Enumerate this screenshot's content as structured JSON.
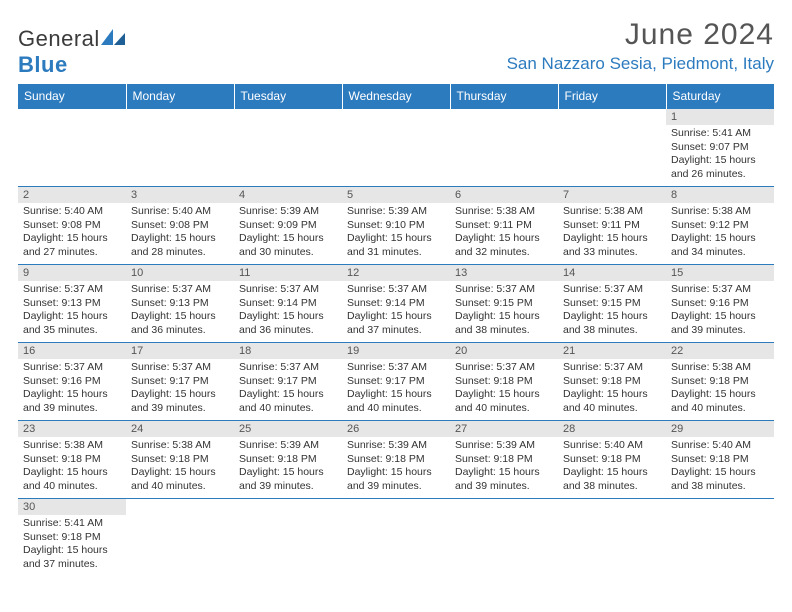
{
  "logo": {
    "name": "General",
    "nameBlue": "Blue"
  },
  "title": "June 2024",
  "location": "San Nazzaro Sesia, Piedmont, Italy",
  "dayHeaders": [
    "Sunday",
    "Monday",
    "Tuesday",
    "Wednesday",
    "Thursday",
    "Friday",
    "Saturday"
  ],
  "colors": {
    "accent": "#2d7bbf",
    "dateBar": "#e6e6e6"
  },
  "weeks": [
    [
      null,
      null,
      null,
      null,
      null,
      null,
      {
        "d": "1",
        "sr": "5:41 AM",
        "ss": "9:07 PM",
        "dl": "15 hours and 26 minutes."
      }
    ],
    [
      {
        "d": "2",
        "sr": "5:40 AM",
        "ss": "9:08 PM",
        "dl": "15 hours and 27 minutes."
      },
      {
        "d": "3",
        "sr": "5:40 AM",
        "ss": "9:08 PM",
        "dl": "15 hours and 28 minutes."
      },
      {
        "d": "4",
        "sr": "5:39 AM",
        "ss": "9:09 PM",
        "dl": "15 hours and 30 minutes."
      },
      {
        "d": "5",
        "sr": "5:39 AM",
        "ss": "9:10 PM",
        "dl": "15 hours and 31 minutes."
      },
      {
        "d": "6",
        "sr": "5:38 AM",
        "ss": "9:11 PM",
        "dl": "15 hours and 32 minutes."
      },
      {
        "d": "7",
        "sr": "5:38 AM",
        "ss": "9:11 PM",
        "dl": "15 hours and 33 minutes."
      },
      {
        "d": "8",
        "sr": "5:38 AM",
        "ss": "9:12 PM",
        "dl": "15 hours and 34 minutes."
      }
    ],
    [
      {
        "d": "9",
        "sr": "5:37 AM",
        "ss": "9:13 PM",
        "dl": "15 hours and 35 minutes."
      },
      {
        "d": "10",
        "sr": "5:37 AM",
        "ss": "9:13 PM",
        "dl": "15 hours and 36 minutes."
      },
      {
        "d": "11",
        "sr": "5:37 AM",
        "ss": "9:14 PM",
        "dl": "15 hours and 36 minutes."
      },
      {
        "d": "12",
        "sr": "5:37 AM",
        "ss": "9:14 PM",
        "dl": "15 hours and 37 minutes."
      },
      {
        "d": "13",
        "sr": "5:37 AM",
        "ss": "9:15 PM",
        "dl": "15 hours and 38 minutes."
      },
      {
        "d": "14",
        "sr": "5:37 AM",
        "ss": "9:15 PM",
        "dl": "15 hours and 38 minutes."
      },
      {
        "d": "15",
        "sr": "5:37 AM",
        "ss": "9:16 PM",
        "dl": "15 hours and 39 minutes."
      }
    ],
    [
      {
        "d": "16",
        "sr": "5:37 AM",
        "ss": "9:16 PM",
        "dl": "15 hours and 39 minutes."
      },
      {
        "d": "17",
        "sr": "5:37 AM",
        "ss": "9:17 PM",
        "dl": "15 hours and 39 minutes."
      },
      {
        "d": "18",
        "sr": "5:37 AM",
        "ss": "9:17 PM",
        "dl": "15 hours and 40 minutes."
      },
      {
        "d": "19",
        "sr": "5:37 AM",
        "ss": "9:17 PM",
        "dl": "15 hours and 40 minutes."
      },
      {
        "d": "20",
        "sr": "5:37 AM",
        "ss": "9:18 PM",
        "dl": "15 hours and 40 minutes."
      },
      {
        "d": "21",
        "sr": "5:37 AM",
        "ss": "9:18 PM",
        "dl": "15 hours and 40 minutes."
      },
      {
        "d": "22",
        "sr": "5:38 AM",
        "ss": "9:18 PM",
        "dl": "15 hours and 40 minutes."
      }
    ],
    [
      {
        "d": "23",
        "sr": "5:38 AM",
        "ss": "9:18 PM",
        "dl": "15 hours and 40 minutes."
      },
      {
        "d": "24",
        "sr": "5:38 AM",
        "ss": "9:18 PM",
        "dl": "15 hours and 40 minutes."
      },
      {
        "d": "25",
        "sr": "5:39 AM",
        "ss": "9:18 PM",
        "dl": "15 hours and 39 minutes."
      },
      {
        "d": "26",
        "sr": "5:39 AM",
        "ss": "9:18 PM",
        "dl": "15 hours and 39 minutes."
      },
      {
        "d": "27",
        "sr": "5:39 AM",
        "ss": "9:18 PM",
        "dl": "15 hours and 39 minutes."
      },
      {
        "d": "28",
        "sr": "5:40 AM",
        "ss": "9:18 PM",
        "dl": "15 hours and 38 minutes."
      },
      {
        "d": "29",
        "sr": "5:40 AM",
        "ss": "9:18 PM",
        "dl": "15 hours and 38 minutes."
      }
    ],
    [
      {
        "d": "30",
        "sr": "5:41 AM",
        "ss": "9:18 PM",
        "dl": "15 hours and 37 minutes."
      },
      null,
      null,
      null,
      null,
      null,
      null
    ]
  ],
  "labels": {
    "sunrise": "Sunrise:",
    "sunset": "Sunset:",
    "daylight": "Daylight:"
  }
}
